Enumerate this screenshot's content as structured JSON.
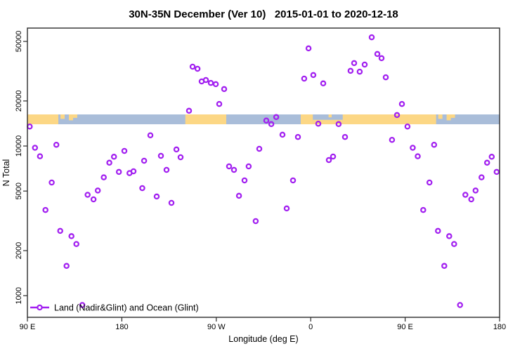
{
  "chart_data": {
    "type": "scatter",
    "title": "30N-35N December (Ver 10)   2015-01-01 to 2020-12-18",
    "xlabel": "Longitude (deg E)",
    "ylabel": "N Total",
    "x_axis": {
      "range": [
        90,
        540
      ],
      "wrapped_longitude": true,
      "tick_positions": [
        90,
        180,
        270,
        360,
        450,
        540
      ],
      "tick_labels": [
        "90 E",
        "180",
        "90 W",
        "0",
        "90 E",
        "180"
      ]
    },
    "y_axis": {
      "scale": "log10",
      "range": [
        716,
        61000
      ],
      "tick_values": [
        1000,
        2000,
        5000,
        10000,
        20000,
        50000
      ],
      "tick_labels": [
        "1000",
        "2000",
        "5000",
        "10000",
        "20000",
        "50000"
      ]
    },
    "grid": false,
    "legend_position": "bottom-left-inside",
    "series": [
      {
        "name": "Land (Nadir&Glint) and Ocean (Glint)",
        "marker": "open-circle",
        "color": "#a220f0",
        "points": [
          [
            92.2,
            13500
          ],
          [
            97.2,
            9730
          ],
          [
            102.0,
            8540
          ],
          [
            107.2,
            3740
          ],
          [
            113.2,
            5700
          ],
          [
            117.6,
            10200
          ],
          [
            121.3,
            2710
          ],
          [
            127.3,
            1580
          ],
          [
            132.0,
            2500
          ],
          [
            136.7,
            2215
          ],
          [
            142.3,
            866
          ],
          [
            147.4,
            4720
          ],
          [
            153.0,
            4400
          ],
          [
            157.1,
            5040
          ],
          [
            162.8,
            6180
          ],
          [
            168.1,
            7730
          ],
          [
            172.5,
            8480
          ],
          [
            177.2,
            6710
          ],
          [
            182.4,
            9270
          ],
          [
            187.3,
            6590
          ],
          [
            191.1,
            6780
          ],
          [
            199.5,
            5230
          ],
          [
            201.2,
            7970
          ],
          [
            207.2,
            11800
          ],
          [
            213.2,
            4600
          ],
          [
            217.2,
            8600
          ],
          [
            222.6,
            6930
          ],
          [
            227.3,
            4170
          ],
          [
            232.0,
            9480
          ],
          [
            236.0,
            8410
          ],
          [
            244.0,
            17200
          ],
          [
            247.4,
            33900
          ],
          [
            252.1,
            32800
          ],
          [
            256.1,
            27000
          ],
          [
            260.1,
            27600
          ],
          [
            264.8,
            26400
          ],
          [
            269.5,
            25900
          ],
          [
            272.8,
            19100
          ],
          [
            277.5,
            24000
          ],
          [
            282.2,
            7310
          ],
          [
            286.9,
            6930
          ],
          [
            291.6,
            4650
          ],
          [
            296.9,
            5890
          ],
          [
            300.9,
            7310
          ],
          [
            307.6,
            3150
          ],
          [
            311.0,
            9580
          ],
          [
            317.7,
            14800
          ],
          [
            322.4,
            14000
          ],
          [
            327.1,
            15600
          ],
          [
            333.1,
            11900
          ],
          [
            337.1,
            3830
          ],
          [
            343.1,
            5890
          ],
          [
            347.8,
            11500
          ],
          [
            353.8,
            28200
          ],
          [
            357.9,
            44900
          ],
          [
            362.5,
            29800
          ],
          [
            367.2,
            14100
          ],
          [
            371.9,
            26200
          ],
          [
            377.3,
            8060
          ],
          [
            381.3,
            8500
          ],
          [
            386.6,
            14000
          ],
          [
            392.7,
            11500
          ],
          [
            398.0,
            31800
          ],
          [
            401.4,
            35800
          ],
          [
            406.7,
            31400
          ],
          [
            411.4,
            35000
          ],
          [
            418.1,
            53300
          ],
          [
            423.5,
            41200
          ],
          [
            427.5,
            38600
          ],
          [
            431.5,
            28800
          ],
          [
            437.5,
            11000
          ],
          [
            442.2,
            16100
          ],
          [
            446.9,
            19100
          ],
          [
            452.2,
            13500
          ],
          [
            457.2,
            9730
          ],
          [
            462.0,
            8540
          ],
          [
            467.2,
            3740
          ],
          [
            473.2,
            5700
          ],
          [
            477.6,
            10200
          ],
          [
            481.3,
            2710
          ],
          [
            487.3,
            1580
          ],
          [
            492.0,
            2500
          ],
          [
            496.7,
            2215
          ],
          [
            502.3,
            866
          ],
          [
            507.4,
            4720
          ],
          [
            513.0,
            4400
          ],
          [
            517.1,
            5040
          ],
          [
            522.8,
            6180
          ],
          [
            528.1,
            7730
          ],
          [
            532.5,
            8480
          ],
          [
            537.2,
            6710
          ]
        ]
      }
    ],
    "map_band": {
      "description": "land-ocean strip for 30N-35N latitude band drawn across plot",
      "n_value_top": 16500,
      "n_value_bottom": 14200,
      "ocean_color": "#a9bdd9",
      "land_color": "#fcd785",
      "land_segments": [
        {
          "from": 90,
          "to": 119.5,
          "top": 0,
          "bottom": 1
        },
        {
          "from": 121.5,
          "to": 125.5,
          "top": 0,
          "bottom": 0.45
        },
        {
          "from": 129.5,
          "to": 133.5,
          "top": 0,
          "bottom": 0.6
        },
        {
          "from": 133.5,
          "to": 137.5,
          "top": 0,
          "bottom": 0.35
        },
        {
          "from": 240.5,
          "to": 279.5,
          "top": 0,
          "bottom": 1
        },
        {
          "from": 350.5,
          "to": 362,
          "top": 0,
          "bottom": 1
        },
        {
          "from": 362,
          "to": 390.5,
          "top": 0.55,
          "bottom": 1
        },
        {
          "from": 377,
          "to": 380,
          "top": 0,
          "bottom": 0.3
        },
        {
          "from": 390.5,
          "to": 479.5,
          "top": 0,
          "bottom": 1
        },
        {
          "from": 481.5,
          "to": 485.5,
          "top": 0,
          "bottom": 0.45
        },
        {
          "from": 489.5,
          "to": 493.5,
          "top": 0,
          "bottom": 0.6
        },
        {
          "from": 493.5,
          "to": 497.5,
          "top": 0,
          "bottom": 0.35
        }
      ]
    }
  },
  "legend": {
    "label": "Land (Nadir&Glint) and Ocean (Glint)"
  },
  "colors": {
    "marker": "#a220f0",
    "axis": "#2b2b2b",
    "ocean": "#a9bdd9",
    "land": "#fcd785"
  }
}
